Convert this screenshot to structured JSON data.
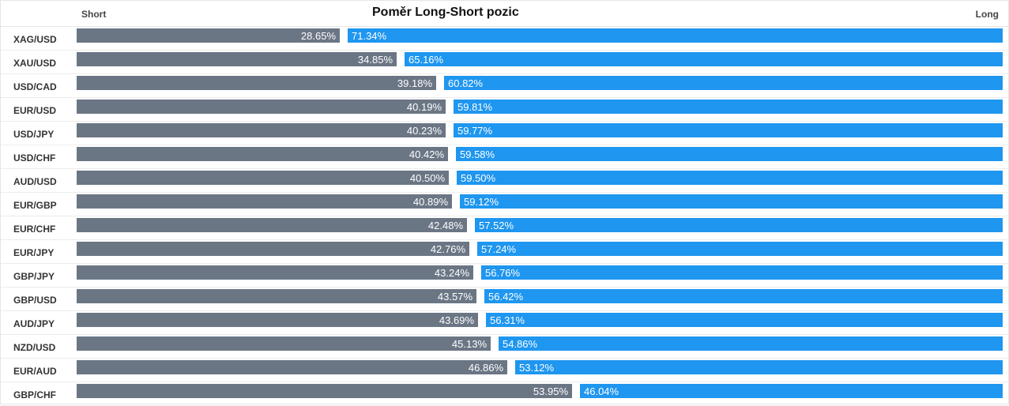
{
  "chart_data": {
    "type": "bar",
    "title": "Poměr Long-Short pozic",
    "short_label": "Short",
    "long_label": "Long",
    "categories": [
      "XAG/USD",
      "XAU/USD",
      "USD/CAD",
      "EUR/USD",
      "USD/JPY",
      "USD/CHF",
      "AUD/USD",
      "EUR/GBP",
      "EUR/CHF",
      "EUR/JPY",
      "GBP/JPY",
      "GBP/USD",
      "AUD/JPY",
      "NZD/USD",
      "EUR/AUD",
      "GBP/CHF"
    ],
    "series": [
      {
        "name": "Short",
        "values": [
          28.65,
          34.85,
          39.18,
          40.19,
          40.23,
          40.42,
          40.5,
          40.89,
          42.48,
          42.76,
          43.24,
          43.57,
          43.69,
          45.13,
          46.86,
          53.95
        ]
      },
      {
        "name": "Long",
        "values": [
          71.34,
          65.16,
          60.82,
          59.81,
          59.77,
          59.58,
          59.5,
          59.12,
          57.52,
          57.24,
          56.76,
          56.42,
          56.31,
          54.86,
          53.12,
          46.04
        ]
      }
    ],
    "short_labels": [
      "28.65%",
      "34.85%",
      "39.18%",
      "40.19%",
      "40.23%",
      "40.42%",
      "40.50%",
      "40.89%",
      "42.48%",
      "42.76%",
      "43.24%",
      "43.57%",
      "43.69%",
      "45.13%",
      "46.86%",
      "53.95%"
    ],
    "long_labels": [
      "71.34%",
      "65.16%",
      "60.82%",
      "59.81%",
      "59.77%",
      "59.58%",
      "59.50%",
      "59.12%",
      "57.52%",
      "57.24%",
      "56.76%",
      "56.42%",
      "56.31%",
      "54.86%",
      "53.12%",
      "46.04%"
    ],
    "colors": {
      "short": "#6b7685",
      "long": "#1f96ef"
    },
    "orientation": "horizontal",
    "stacked": true
  }
}
